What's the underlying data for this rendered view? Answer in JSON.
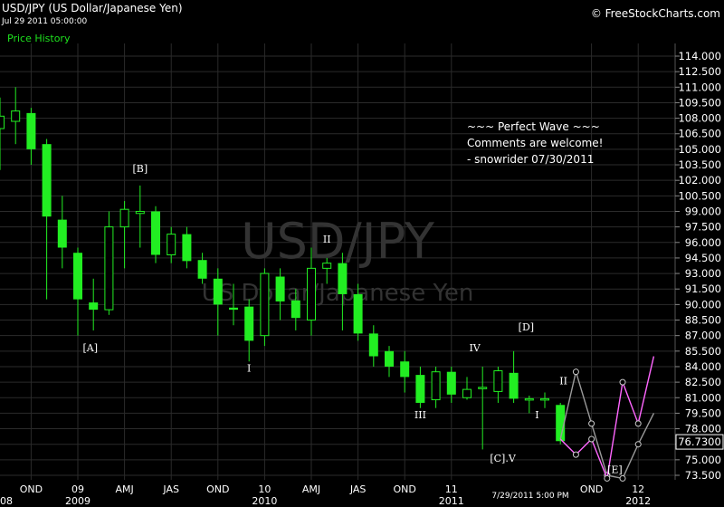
{
  "header": {
    "title": "USD/JPY (US Dollar/Japanese Yen)",
    "timestamp": "Jul 29 2011 05:00:00",
    "panel_label": "Price History",
    "credit": "© FreeStockCharts.com"
  },
  "colors": {
    "background": "#000000",
    "grid": "#2b2b2b",
    "up": "#22ee22",
    "down": "#22ee22",
    "text": "#ffffff",
    "projection_a": "#ff66ff",
    "projection_b": "#9a9a9a",
    "watermark": "#3a3a3a"
  },
  "chart_data": {
    "type": "candlestick",
    "period": "monthly",
    "watermark": "USD/JPY",
    "watermark_sub": "US Dollar/Japanese Yen",
    "last_price": "76.7300",
    "cursor_label": "7/29/2011 5:00 PM",
    "ylim": [
      72.0,
      115.5
    ],
    "y_ticks": [
      "114.000",
      "112.500",
      "111.000",
      "109.500",
      "108.000",
      "106.500",
      "105.000",
      "103.500",
      "102.000",
      "100.500",
      "99.000",
      "97.500",
      "96.000",
      "94.500",
      "93.000",
      "91.500",
      "90.000",
      "88.500",
      "87.000",
      "85.500",
      "84.000",
      "82.500",
      "81.000",
      "79.500",
      "78.000",
      "76.500",
      "75.000",
      "73.500"
    ],
    "x_labels": [
      {
        "text": "08",
        "at": -0.5,
        "row": 2
      },
      {
        "text": "OND",
        "at": 2,
        "row": 1
      },
      {
        "text": "09",
        "at": 5,
        "row": 1
      },
      {
        "text": "2009",
        "at": 5,
        "row": 2
      },
      {
        "text": "AMJ",
        "at": 8,
        "row": 1
      },
      {
        "text": "JAS",
        "at": 11,
        "row": 1
      },
      {
        "text": "OND",
        "at": 14,
        "row": 1
      },
      {
        "text": "10",
        "at": 17,
        "row": 1
      },
      {
        "text": "2010",
        "at": 17,
        "row": 2
      },
      {
        "text": "AMJ",
        "at": 20,
        "row": 1
      },
      {
        "text": "JAS",
        "at": 23,
        "row": 1
      },
      {
        "text": "OND",
        "at": 26,
        "row": 1
      },
      {
        "text": "11",
        "at": 29,
        "row": 1
      },
      {
        "text": "2011",
        "at": 29,
        "row": 2
      },
      {
        "text": "OND",
        "at": 38,
        "row": 1
      },
      {
        "text": "12",
        "at": 41,
        "row": 1
      },
      {
        "text": "2012",
        "at": 41,
        "row": 2
      }
    ],
    "candles": [
      {
        "o": 107.0,
        "h": 110.0,
        "l": 103.0,
        "c": 108.2
      },
      {
        "o": 107.7,
        "h": 111.0,
        "l": 105.5,
        "c": 108.7
      },
      {
        "o": 108.5,
        "h": 109.0,
        "l": 103.5,
        "c": 105.0
      },
      {
        "o": 105.5,
        "h": 106.0,
        "l": 90.5,
        "c": 98.5
      },
      {
        "o": 98.2,
        "h": 100.5,
        "l": 93.5,
        "c": 95.5
      },
      {
        "o": 95.0,
        "h": 95.5,
        "l": 87.0,
        "c": 90.5
      },
      {
        "o": 90.2,
        "h": 92.5,
        "l": 87.5,
        "c": 89.5
      },
      {
        "o": 89.5,
        "h": 99.0,
        "l": 89.0,
        "c": 97.5
      },
      {
        "o": 97.5,
        "h": 100.0,
        "l": 93.5,
        "c": 99.2
      },
      {
        "o": 98.8,
        "h": 101.5,
        "l": 95.5,
        "c": 99.0
      },
      {
        "o": 99.0,
        "h": 99.5,
        "l": 94.0,
        "c": 94.8
      },
      {
        "o": 94.8,
        "h": 97.5,
        "l": 94.0,
        "c": 96.8
      },
      {
        "o": 96.8,
        "h": 97.5,
        "l": 93.5,
        "c": 94.2
      },
      {
        "o": 94.3,
        "h": 95.0,
        "l": 92.0,
        "c": 92.5
      },
      {
        "o": 92.5,
        "h": 93.5,
        "l": 87.0,
        "c": 90.0
      },
      {
        "o": 89.7,
        "h": 92.0,
        "l": 88.0,
        "c": 89.5
      },
      {
        "o": 89.8,
        "h": 90.5,
        "l": 84.5,
        "c": 86.5
      },
      {
        "o": 87.0,
        "h": 93.5,
        "l": 86.0,
        "c": 93.0
      },
      {
        "o": 92.7,
        "h": 93.5,
        "l": 88.5,
        "c": 90.3
      },
      {
        "o": 90.4,
        "h": 91.5,
        "l": 87.5,
        "c": 88.7
      },
      {
        "o": 88.5,
        "h": 95.5,
        "l": 87.0,
        "c": 93.5
      },
      {
        "o": 93.5,
        "h": 94.5,
        "l": 92.0,
        "c": 94.0
      },
      {
        "o": 94.0,
        "h": 95.0,
        "l": 87.5,
        "c": 91.0
      },
      {
        "o": 91.0,
        "h": 92.0,
        "l": 86.5,
        "c": 87.2
      },
      {
        "o": 87.2,
        "h": 88.0,
        "l": 84.0,
        "c": 85.0
      },
      {
        "o": 85.5,
        "h": 86.0,
        "l": 83.0,
        "c": 84.0
      },
      {
        "o": 84.5,
        "h": 85.5,
        "l": 81.5,
        "c": 83.0
      },
      {
        "o": 83.2,
        "h": 84.0,
        "l": 80.0,
        "c": 80.5
      },
      {
        "o": 80.8,
        "h": 84.0,
        "l": 80.0,
        "c": 83.5
      },
      {
        "o": 83.5,
        "h": 84.0,
        "l": 80.5,
        "c": 81.3
      },
      {
        "o": 81.0,
        "h": 83.0,
        "l": 80.8,
        "c": 81.8
      },
      {
        "o": 81.9,
        "h": 84.0,
        "l": 76.0,
        "c": 82.0
      },
      {
        "o": 81.6,
        "h": 84.0,
        "l": 80.5,
        "c": 83.6
      },
      {
        "o": 83.4,
        "h": 85.5,
        "l": 80.5,
        "c": 80.9
      },
      {
        "o": 80.8,
        "h": 81.2,
        "l": 79.5,
        "c": 80.9
      },
      {
        "o": 80.8,
        "h": 81.5,
        "l": 80.0,
        "c": 80.9
      },
      {
        "o": 80.3,
        "h": 80.5,
        "l": 76.5,
        "c": 76.8
      }
    ],
    "projection_pink": [
      [
        36,
        77.0
      ],
      [
        37,
        75.5
      ],
      [
        38,
        77.0
      ],
      [
        39,
        73.2
      ],
      [
        40,
        82.5
      ],
      [
        41,
        78.5
      ],
      [
        42,
        85.0
      ]
    ],
    "projection_gray": [
      [
        36,
        77.0
      ],
      [
        37,
        83.5
      ],
      [
        38,
        78.5
      ],
      [
        39,
        73.5
      ],
      [
        40,
        73.2
      ],
      [
        41,
        76.5
      ],
      [
        42,
        79.5
      ]
    ],
    "wave_labels": [
      {
        "text": "[A]",
        "i": 5.8,
        "y": 85.5
      },
      {
        "text": "[B]",
        "i": 9.0,
        "y": 102.8
      },
      {
        "text": "I",
        "i": 16.0,
        "y": 83.5
      },
      {
        "text": "II",
        "i": 21.0,
        "y": 96.0
      },
      {
        "text": "III",
        "i": 27.0,
        "y": 79.0
      },
      {
        "text": "IV",
        "i": 30.5,
        "y": 85.5
      },
      {
        "text": "[C].V",
        "i": 32.3,
        "y": 74.8
      },
      {
        "text": "[D]",
        "i": 33.8,
        "y": 87.5
      },
      {
        "text": "II",
        "i": 36.2,
        "y": 82.3
      },
      {
        "text": "I",
        "i": 34.5,
        "y": 79.0
      },
      {
        "text": "[E]",
        "i": 39.5,
        "y": 73.7
      }
    ],
    "annotations": [
      "~~~ Perfect Wave ~~~",
      "Comments are welcome!",
      "- snowrider  07/30/2011"
    ]
  }
}
